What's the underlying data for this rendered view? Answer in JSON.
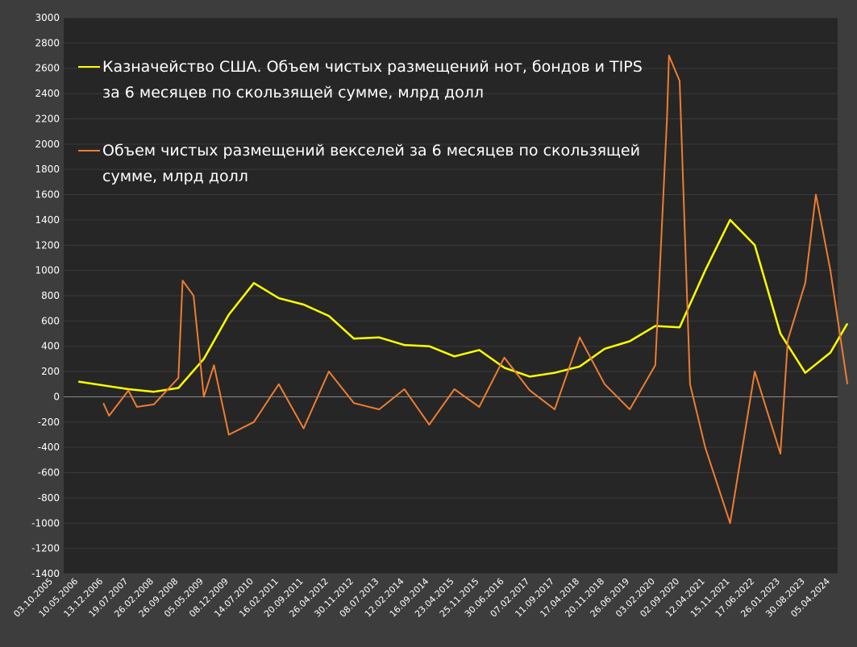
{
  "chart_data": {
    "type": "line",
    "title": "",
    "xlabel": "",
    "ylabel": "",
    "ylim": [
      -1400,
      3000
    ],
    "ytick_step": 200,
    "grid": true,
    "legend_position": "top-left",
    "x_tick_labels": [
      "03.10.2005",
      "10.05.2006",
      "13.12.2006",
      "19.07.2007",
      "26.02.2008",
      "26.09.2008",
      "05.05.2009",
      "08.12.2009",
      "14.07.2010",
      "16.02.2011",
      "20.09.2011",
      "26.04.2012",
      "30.11.2012",
      "08.07.2013",
      "12.02.2014",
      "16.09.2014",
      "23.04.2015",
      "25.11.2015",
      "30.06.2016",
      "07.02.2017",
      "11.09.2017",
      "17.04.2018",
      "20.11.2018",
      "26.06.2019",
      "03.02.2020",
      "02.09.2020",
      "12.04.2021",
      "15.11.2021",
      "17.06.2022",
      "26.01.2023",
      "30.08.2023",
      "05.04.2024"
    ],
    "series": [
      {
        "name": "Казначейство США. Объем чистых размещений нот, бондов и TIPS за 6 месяцев по скользящей сумме, млрд долл",
        "legend_lines": [
          "Казначейство США. Объем чистых размещений нот, бондов и TIPS",
          "за 6 месяцев по скользящей сумме, млрд долл"
        ],
        "color": "#ffff00",
        "points": [
          [
            "10.05.2006",
            120
          ],
          [
            "13.12.2006",
            90
          ],
          [
            "19.07.2007",
            60
          ],
          [
            "26.02.2008",
            40
          ],
          [
            "26.09.2008",
            70
          ],
          [
            "05.05.2009",
            300
          ],
          [
            "08.12.2009",
            650
          ],
          [
            "14.07.2010",
            900
          ],
          [
            "16.02.2011",
            780
          ],
          [
            "20.09.2011",
            730
          ],
          [
            "26.04.2012",
            640
          ],
          [
            "30.11.2012",
            460
          ],
          [
            "08.07.2013",
            470
          ],
          [
            "12.02.2014",
            410
          ],
          [
            "16.09.2014",
            400
          ],
          [
            "23.04.2015",
            320
          ],
          [
            "25.11.2015",
            370
          ],
          [
            "30.06.2016",
            230
          ],
          [
            "07.02.2017",
            160
          ],
          [
            "11.09.2017",
            190
          ],
          [
            "17.04.2018",
            240
          ],
          [
            "20.11.2018",
            380
          ],
          [
            "26.06.2019",
            440
          ],
          [
            "03.02.2020",
            560
          ],
          [
            "02.09.2020",
            550
          ],
          [
            "12.04.2021",
            1000
          ],
          [
            "15.11.2021",
            1400
          ],
          [
            "17.06.2022",
            1200
          ],
          [
            "26.01.2023",
            500
          ],
          [
            "30.08.2023",
            190
          ],
          [
            "05.04.2024",
            350
          ],
          [
            "31.08.2024",
            580
          ]
        ]
      },
      {
        "name": "Объем чистых размещений векселей за 6 месяцев по скользящей сумме, млрд долл",
        "legend_lines": [
          "Объем чистых размещений векселей за 6 месяцев по скользящей",
          "сумме, млрд долл"
        ],
        "color": "#ed7d31",
        "points": [
          [
            "13.12.2006",
            -50
          ],
          [
            "01.02.2007",
            -150
          ],
          [
            "19.07.2007",
            50
          ],
          [
            "01.10.2007",
            -80
          ],
          [
            "26.02.2008",
            -60
          ],
          [
            "26.09.2008",
            150
          ],
          [
            "01.11.2008",
            920
          ],
          [
            "05.02.2009",
            800
          ],
          [
            "05.05.2009",
            0
          ],
          [
            "01.08.2009",
            250
          ],
          [
            "08.12.2009",
            -300
          ],
          [
            "14.07.2010",
            -200
          ],
          [
            "16.02.2011",
            100
          ],
          [
            "20.09.2011",
            -250
          ],
          [
            "26.04.2012",
            200
          ],
          [
            "30.11.2012",
            -50
          ],
          [
            "08.07.2013",
            -100
          ],
          [
            "12.02.2014",
            60
          ],
          [
            "16.09.2014",
            -220
          ],
          [
            "23.04.2015",
            60
          ],
          [
            "25.11.2015",
            -80
          ],
          [
            "30.06.2016",
            310
          ],
          [
            "07.02.2017",
            50
          ],
          [
            "11.09.2017",
            -100
          ],
          [
            "17.04.2018",
            470
          ],
          [
            "20.11.2018",
            100
          ],
          [
            "26.06.2019",
            -100
          ],
          [
            "03.02.2020",
            250
          ],
          [
            "15.05.2020",
            2200
          ],
          [
            "01.06.2020",
            2700
          ],
          [
            "02.09.2020",
            2500
          ],
          [
            "01.12.2020",
            100
          ],
          [
            "12.04.2021",
            -400
          ],
          [
            "15.11.2021",
            -1000
          ],
          [
            "17.06.2022",
            200
          ],
          [
            "26.01.2023",
            -450
          ],
          [
            "01.04.2023",
            450
          ],
          [
            "30.08.2023",
            900
          ],
          [
            "01.12.2023",
            1600
          ],
          [
            "05.04.2024",
            1000
          ],
          [
            "31.08.2024",
            100
          ]
        ]
      }
    ]
  }
}
